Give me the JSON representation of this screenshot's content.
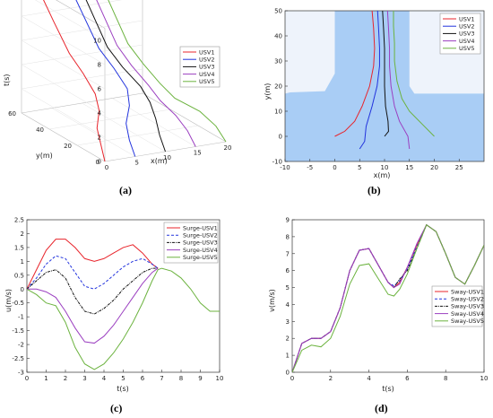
{
  "colors": {
    "usv1": "#e8242b",
    "usv2": "#2233dd",
    "usv3": "#111111",
    "usv4": "#9b3fc0",
    "usv5": "#6cb33f",
    "water": "#a9cdf5",
    "land": "#eef3fb"
  },
  "chart_data": [
    {
      "type": "line",
      "panel": "(a)",
      "xlabel": "x(m)",
      "ylabel": "y(m)",
      "zlabel": "t(s)",
      "xticks": [
        "0",
        "5",
        "10",
        "15",
        "20"
      ],
      "yticks": [
        "0",
        "20",
        "40",
        "60"
      ],
      "zticks": [
        "0",
        "2",
        "4",
        "6",
        "8",
        "10"
      ],
      "legend_position": "top-right",
      "series": [
        {
          "name": "USV1",
          "x": [
            0,
            0.5,
            1,
            2.5,
            3,
            3.3,
            3.3,
            3,
            2.8
          ],
          "y": [
            0,
            5,
            10,
            15,
            20,
            30,
            40,
            50,
            60
          ],
          "t": [
            0,
            1,
            2,
            3,
            4,
            5,
            6,
            8,
            10
          ]
        },
        {
          "name": "USV2",
          "x": [
            5,
            5.2,
            5.8,
            7.5,
            8.3,
            8.4,
            8.2,
            8,
            7.8
          ],
          "y": [
            0,
            5,
            10,
            15,
            20,
            30,
            40,
            50,
            60
          ],
          "t": [
            0,
            1,
            2,
            3,
            4,
            5,
            6,
            8,
            10
          ]
        },
        {
          "name": "USV3",
          "x": [
            10,
            10.2,
            10.7,
            10.9,
            10.5,
            9.8,
            9.6,
            9.5,
            9.4
          ],
          "y": [
            0,
            5,
            10,
            15,
            20,
            30,
            40,
            50,
            60
          ],
          "t": [
            0,
            1,
            2,
            3,
            4,
            5,
            6,
            8,
            10
          ]
        },
        {
          "name": "USV4",
          "x": [
            15,
            14.8,
            14,
            12.6,
            11.8,
            11.3,
            11.2,
            11.1,
            11
          ],
          "y": [
            0,
            5,
            10,
            15,
            20,
            30,
            40,
            50,
            60
          ],
          "t": [
            0,
            1,
            2,
            3,
            4,
            5,
            6,
            8,
            10
          ]
        },
        {
          "name": "USV5",
          "x": [
            20,
            19.5,
            18,
            15,
            13.7,
            13.2,
            13,
            12.9,
            12.8
          ],
          "y": [
            0,
            5,
            10,
            15,
            20,
            30,
            40,
            50,
            60
          ],
          "t": [
            0,
            1,
            2,
            3,
            4,
            5,
            6,
            8,
            10
          ]
        }
      ]
    },
    {
      "type": "line",
      "panel": "(b)",
      "xlabel": "x(m)",
      "ylabel": "y(m)",
      "xlim": [
        -10,
        30
      ],
      "ylim": [
        -10,
        50
      ],
      "xticks": [
        "-10",
        "-5",
        "0",
        "5",
        "10",
        "15",
        "20",
        "25"
      ],
      "yticks": [
        "-10",
        "0",
        "10",
        "20",
        "30",
        "40",
        "50"
      ],
      "legend_position": "top-right",
      "series": [
        {
          "name": "USV1",
          "x": [
            0,
            2,
            4,
            5.5,
            7,
            7.8,
            8,
            7.8,
            7.5
          ],
          "y": [
            0,
            2,
            6,
            12,
            20,
            28,
            35,
            43,
            50
          ]
        },
        {
          "name": "USV2",
          "x": [
            5,
            6,
            6.3,
            7.5,
            8.5,
            9,
            9,
            8.8,
            8.6
          ],
          "y": [
            -5,
            -2,
            4,
            12,
            20,
            28,
            35,
            43,
            50
          ]
        },
        {
          "name": "USV3",
          "x": [
            10,
            10.8,
            10.7,
            10.2,
            10,
            10,
            10,
            9.8,
            9.6
          ],
          "y": [
            0,
            2,
            6,
            12,
            20,
            28,
            35,
            43,
            50
          ]
        },
        {
          "name": "USV4",
          "x": [
            15,
            14.7,
            13,
            12,
            11.3,
            11,
            11,
            10.8,
            10.6
          ],
          "y": [
            -5,
            0,
            6,
            12,
            20,
            28,
            35,
            43,
            50
          ]
        },
        {
          "name": "USV5",
          "x": [
            20,
            18,
            15,
            13.5,
            12.5,
            12,
            12,
            11.8,
            11.8
          ],
          "y": [
            0,
            4,
            10,
            15,
            22,
            30,
            37,
            44,
            50
          ]
        }
      ]
    },
    {
      "type": "line",
      "panel": "(c)",
      "xlabel": "t(s)",
      "ylabel": "u(m/s)",
      "xlim": [
        0,
        10
      ],
      "ylim": [
        -3,
        2.5
      ],
      "xticks": [
        "0",
        "1",
        "2",
        "3",
        "4",
        "5",
        "6",
        "7",
        "8",
        "9",
        "10"
      ],
      "yticks": [
        "-3",
        "-2.5",
        "-2",
        "-1.5",
        "-1",
        "-0.5",
        "0",
        "0.5",
        "1",
        "1.5",
        "2",
        "2.5"
      ],
      "legend_position": "top-right",
      "series": [
        {
          "name": "Surge-USV1",
          "t": [
            0,
            0.5,
            1,
            1.5,
            2,
            2.5,
            3,
            3.5,
            4,
            4.5,
            5,
            5.5,
            6,
            6.5,
            6.8
          ],
          "values": [
            0,
            0.7,
            1.4,
            1.8,
            1.8,
            1.5,
            1.1,
            1.0,
            1.1,
            1.3,
            1.5,
            1.6,
            1.3,
            0.9,
            0.75
          ]
        },
        {
          "name": "Surge-USV2",
          "t": [
            0,
            0.5,
            1,
            1.5,
            2,
            2.5,
            3,
            3.5,
            4,
            4.5,
            5,
            5.5,
            6,
            6.5,
            6.8
          ],
          "values": [
            0,
            0.4,
            0.9,
            1.2,
            1.1,
            0.6,
            0.1,
            0.0,
            0.2,
            0.5,
            0.8,
            1.0,
            1.1,
            0.9,
            0.75
          ]
        },
        {
          "name": "Surge-USV3",
          "t": [
            0,
            0.5,
            1,
            1.5,
            2,
            2.5,
            3,
            3.5,
            4,
            4.5,
            5,
            5.5,
            6,
            6.5,
            6.8
          ],
          "values": [
            0,
            0.3,
            0.6,
            0.7,
            0.4,
            -0.3,
            -0.8,
            -0.9,
            -0.7,
            -0.4,
            0.0,
            0.3,
            0.6,
            0.75,
            0.75
          ]
        },
        {
          "name": "Surge-USV4",
          "t": [
            0,
            0.5,
            1,
            1.5,
            2,
            2.5,
            3,
            3.5,
            4,
            4.5,
            5,
            5.5,
            6,
            6.5,
            6.8
          ],
          "values": [
            0,
            0.0,
            -0.1,
            -0.3,
            -0.8,
            -1.4,
            -1.9,
            -1.95,
            -1.7,
            -1.3,
            -0.8,
            -0.3,
            0.2,
            0.6,
            0.75
          ]
        },
        {
          "name": "Surge-USV5",
          "t": [
            0,
            0.5,
            1,
            1.5,
            2,
            2.5,
            3,
            3.5,
            4,
            4.5,
            5,
            5.5,
            6,
            6.5,
            6.8,
            7,
            7.5,
            8,
            8.5,
            9,
            9.5,
            10
          ],
          "values": [
            0,
            -0.2,
            -0.5,
            -0.6,
            -1.2,
            -2.1,
            -2.7,
            -2.9,
            -2.7,
            -2.3,
            -1.8,
            -1.2,
            -0.5,
            0.3,
            0.7,
            0.75,
            0.65,
            0.4,
            0.0,
            -0.5,
            -0.8,
            -0.8
          ]
        }
      ]
    },
    {
      "type": "line",
      "panel": "(d)",
      "xlabel": "t(s)",
      "ylabel": "v(m/s)",
      "xlim": [
        0,
        10
      ],
      "ylim": [
        0,
        9
      ],
      "xticks": [
        "0",
        "2",
        "4",
        "6",
        "8",
        "10"
      ],
      "yticks": [
        "0",
        "1",
        "2",
        "3",
        "4",
        "5",
        "6",
        "7",
        "8",
        "9"
      ],
      "legend_position": "right",
      "series": [
        {
          "name": "Sway-USV1",
          "t": [
            0,
            0.5,
            1,
            1.5,
            2,
            2.5,
            3,
            3.5,
            4,
            4.5,
            5,
            5.3,
            5.6,
            6,
            6.5,
            7,
            7.5,
            8,
            8.5,
            9,
            9.5,
            10
          ],
          "values": [
            0,
            1.7,
            2.0,
            2.0,
            2.4,
            3.8,
            6.0,
            7.2,
            7.3,
            6.3,
            5.3,
            5.0,
            5.3,
            6.2,
            7.5,
            8.7,
            8.3,
            7.0,
            5.6,
            5.2,
            6.3,
            7.5
          ]
        },
        {
          "name": "Sway-USV2",
          "t": [
            0,
            0.5,
            1,
            1.5,
            2,
            2.5,
            3,
            3.5,
            4,
            4.5,
            5,
            5.3,
            5.6,
            6,
            6.5,
            7,
            7.5,
            8,
            8.5,
            9,
            9.5,
            10
          ],
          "values": [
            0,
            1.7,
            2.0,
            2.0,
            2.4,
            3.8,
            6.0,
            7.2,
            7.3,
            6.3,
            5.3,
            5.1,
            5.4,
            6.1,
            7.4,
            8.7,
            8.3,
            7.0,
            5.6,
            5.2,
            6.3,
            7.5
          ]
        },
        {
          "name": "Sway-USV3",
          "t": [
            0,
            0.5,
            1,
            1.5,
            2,
            2.5,
            3,
            3.5,
            4,
            4.5,
            5,
            5.3,
            5.6,
            6,
            6.5,
            7,
            7.5,
            8,
            8.5,
            9,
            9.5,
            10
          ],
          "values": [
            0,
            1.7,
            2.0,
            2.0,
            2.4,
            3.8,
            6.0,
            7.2,
            7.3,
            6.3,
            5.3,
            5.0,
            5.5,
            6.0,
            7.3,
            8.7,
            8.3,
            7.0,
            5.6,
            5.2,
            6.3,
            7.5
          ]
        },
        {
          "name": "Sway-USV4",
          "t": [
            0,
            0.5,
            1,
            1.5,
            2,
            2.5,
            3,
            3.5,
            4,
            4.5,
            5,
            5.3,
            5.6,
            6,
            6.5,
            7,
            7.5,
            8,
            8.5,
            9,
            9.5,
            10
          ],
          "values": [
            0,
            1.7,
            2.0,
            2.0,
            2.4,
            3.8,
            6.0,
            7.2,
            7.3,
            6.3,
            5.3,
            5.0,
            5.2,
            6.2,
            7.6,
            8.7,
            8.3,
            7.0,
            5.6,
            5.2,
            6.3,
            7.5
          ]
        },
        {
          "name": "Sway-USV5",
          "t": [
            0,
            0.5,
            1,
            1.5,
            2,
            2.5,
            3,
            3.5,
            4,
            4.5,
            5,
            5.3,
            5.6,
            6,
            6.5,
            7,
            7.5,
            8,
            8.5,
            9,
            9.5,
            10
          ],
          "values": [
            0,
            1.3,
            1.6,
            1.5,
            2.0,
            3.3,
            5.2,
            6.3,
            6.4,
            5.5,
            4.6,
            4.5,
            4.9,
            5.8,
            7.3,
            8.7,
            8.3,
            7.0,
            5.6,
            5.2,
            6.3,
            7.5
          ]
        }
      ]
    }
  ]
}
